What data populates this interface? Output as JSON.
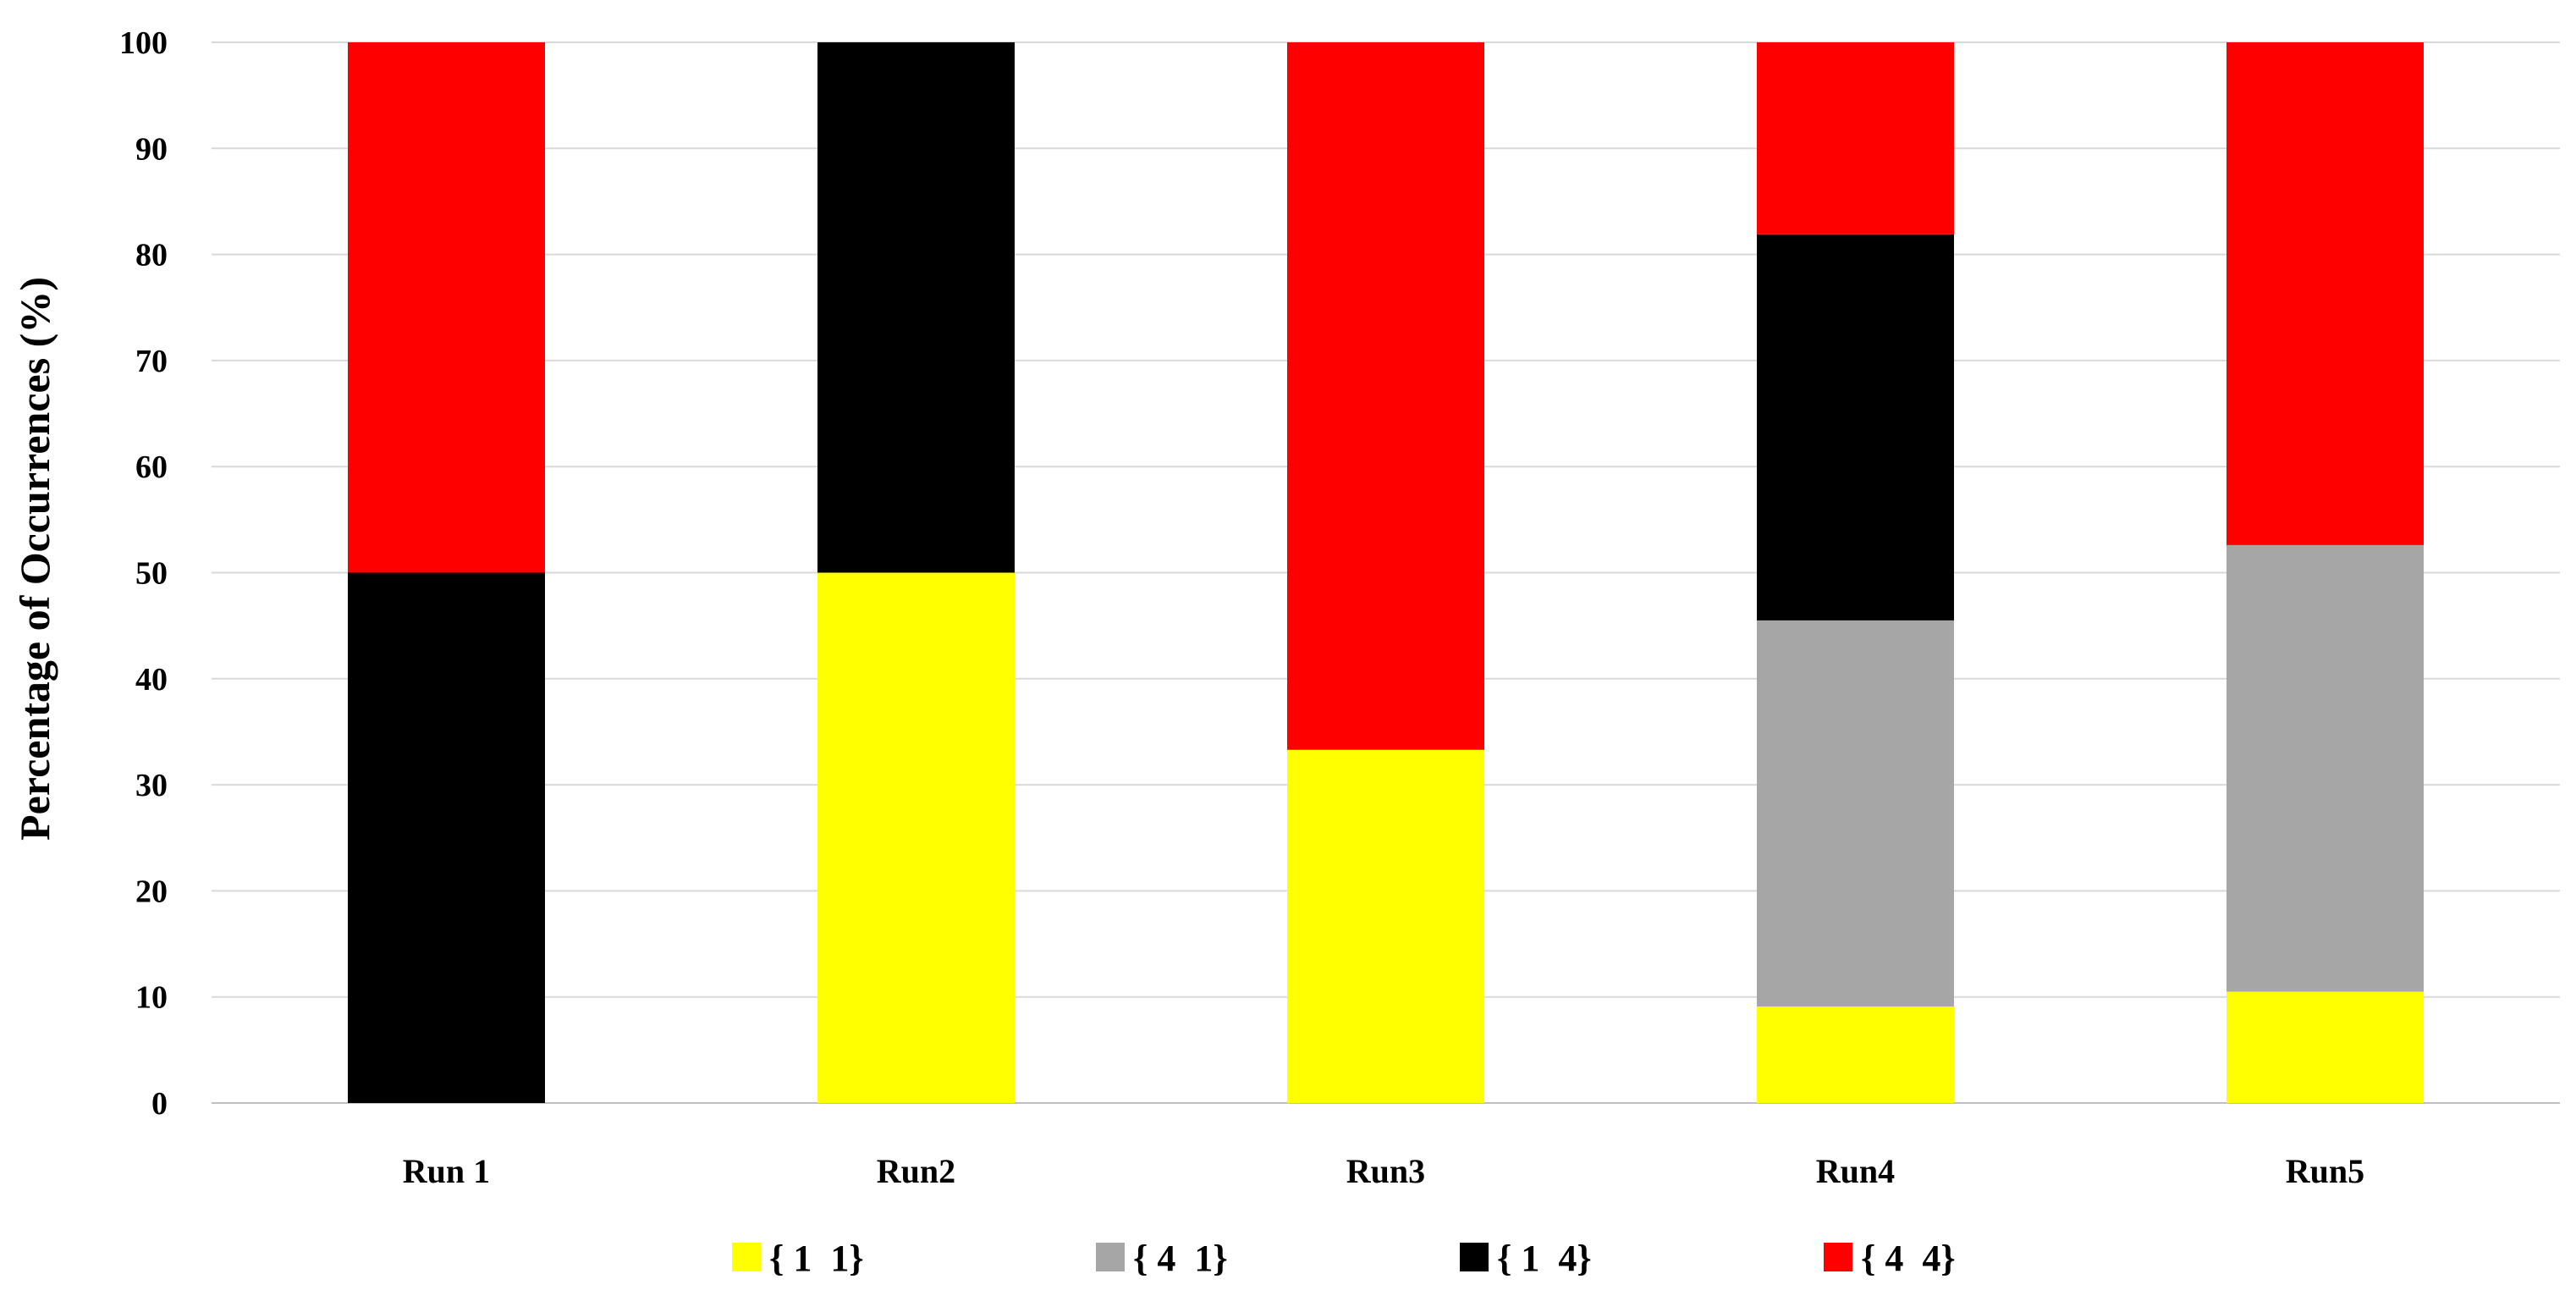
{
  "chart_data": {
    "type": "bar",
    "stacked": true,
    "title": "",
    "xlabel": "",
    "ylabel": "Percentage of Occurrences (%)",
    "ylim": [
      0,
      100
    ],
    "yticks": [
      0,
      10,
      20,
      30,
      40,
      50,
      60,
      70,
      80,
      90,
      100
    ],
    "grid": true,
    "legend_position": "bottom",
    "categories": [
      "Run 1",
      "Run2",
      "Run3",
      "Run4",
      "Run5"
    ],
    "series": [
      {
        "name": "{ 1  1}",
        "color": "#ffff00",
        "values": [
          0,
          50,
          33.3,
          9.1,
          10.5
        ]
      },
      {
        "name": "{ 4  1}",
        "color": "#a6a6a6",
        "values": [
          0,
          0,
          0,
          36.4,
          42.1
        ]
      },
      {
        "name": "{ 1  4}",
        "color": "#000000",
        "values": [
          50,
          50,
          0,
          36.4,
          0
        ]
      },
      {
        "name": "{ 4  4}",
        "color": "#ff0000",
        "values": [
          50,
          0,
          66.7,
          18.1,
          47.4
        ]
      }
    ]
  }
}
